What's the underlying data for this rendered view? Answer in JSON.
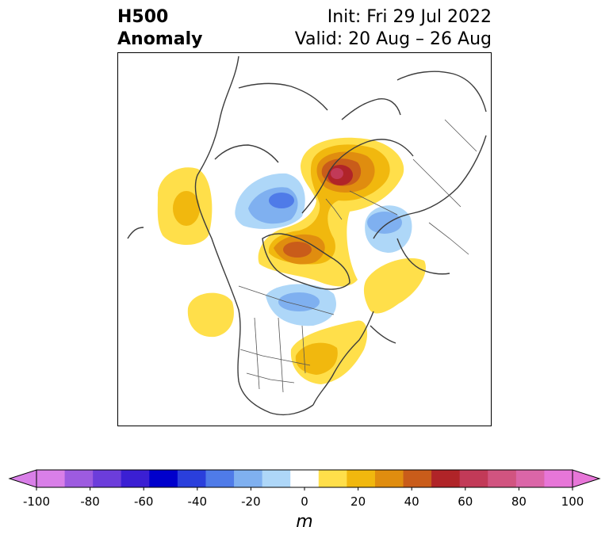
{
  "title": {
    "left_line1": "H500",
    "left_line2": "Anomaly",
    "right_line1": "Init: Fri 29 Jul 2022",
    "right_line2": "Valid: 20 Aug – 26 Aug"
  },
  "colorbar": {
    "unit": "m",
    "ticks": [
      "-100",
      "-80",
      "-60",
      "-40",
      "-20",
      "0",
      "20",
      "40",
      "60",
      "80",
      "100"
    ],
    "levels": [
      -100,
      -90,
      -80,
      -70,
      -60,
      -50,
      -40,
      -30,
      -20,
      -10,
      10,
      20,
      30,
      40,
      50,
      60,
      70,
      80,
      90,
      100
    ],
    "colors": [
      "#d97fe8",
      "#9d5be0",
      "#6c3ddb",
      "#3b1fd3",
      "#0000cc",
      "#2a3fdc",
      "#4f7be8",
      "#7fb0f0",
      "#aed7f8",
      "#ffffff",
      "#ffdf4a",
      "#f1b80e",
      "#e08d0f",
      "#c95c1a",
      "#b02428",
      "#c23a58",
      "#d15480",
      "#db66a8",
      "#e776d8"
    ],
    "under_color": "#d97fe8",
    "over_color": "#e776d8"
  }
}
